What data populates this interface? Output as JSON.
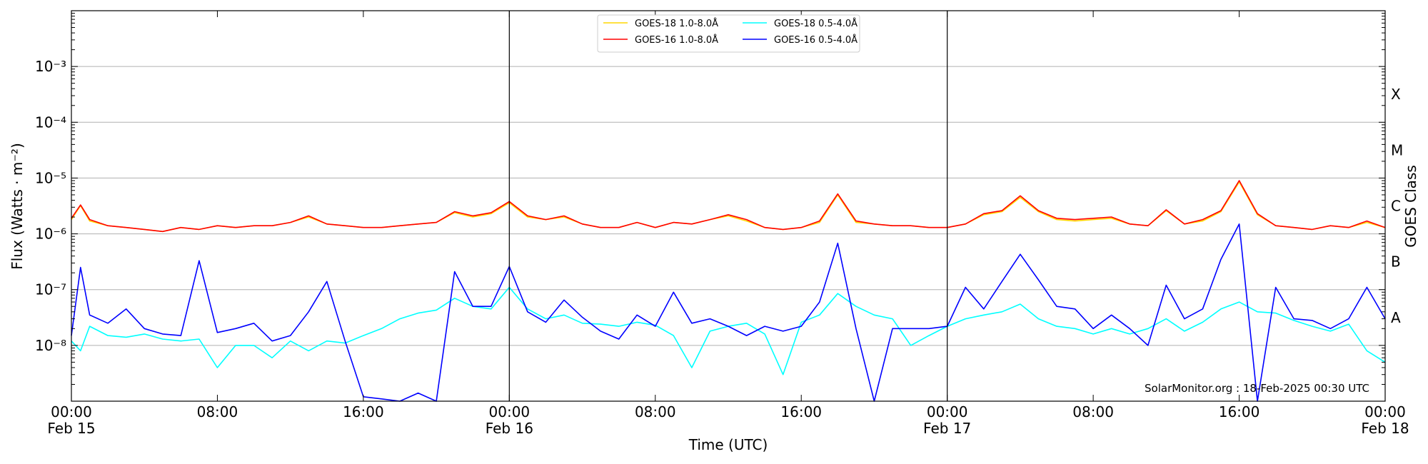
{
  "chart_data": {
    "type": "line",
    "xlabel": "Time (UTC)",
    "ylabel": "Flux (Watts · m⁻²)",
    "right_label": "GOES Class",
    "watermark": "SolarMonitor.org : 18-Feb-2025 00:30 UTC",
    "y_scale": "log",
    "ylim": [
      1e-09,
      0.01
    ],
    "xlim_hours": [
      0,
      72
    ],
    "x_ticks": [
      {
        "time": "00:00",
        "date": "Feb 15"
      },
      {
        "time": "08:00",
        "date": ""
      },
      {
        "time": "16:00",
        "date": ""
      },
      {
        "time": "00:00",
        "date": "Feb 16"
      },
      {
        "time": "08:00",
        "date": ""
      },
      {
        "time": "16:00",
        "date": ""
      },
      {
        "time": "00:00",
        "date": "Feb 17"
      },
      {
        "time": "08:00",
        "date": ""
      },
      {
        "time": "16:00",
        "date": ""
      },
      {
        "time": "00:00",
        "date": "Feb 18"
      }
    ],
    "y_ticks": [
      "10⁻⁸",
      "10⁻⁷",
      "10⁻⁶",
      "10⁻⁵",
      "10⁻⁴",
      "10⁻³"
    ],
    "goes_classes": [
      "A",
      "B",
      "C",
      "M",
      "X"
    ],
    "day_boundaries": [
      "Feb 16 00:00",
      "Feb 17 00:00"
    ],
    "grid": "horizontal",
    "legend_position": "top-center",
    "series": [
      {
        "name": "GOES-18 1.0-8.0Å",
        "color": "#ffd700",
        "x": [
          0,
          0.5,
          1,
          2,
          3,
          4,
          5,
          6,
          7,
          8,
          9,
          10,
          11,
          12,
          13,
          14,
          15,
          16,
          17,
          18,
          19,
          20,
          21,
          22,
          23,
          24,
          25,
          26,
          27,
          28,
          29,
          30,
          31,
          32,
          33,
          34,
          35,
          36,
          37,
          38,
          39,
          40,
          41,
          42,
          43,
          44,
          45,
          46,
          47,
          48,
          49,
          50,
          51,
          52,
          53,
          54,
          55,
          56,
          57,
          58,
          59,
          60,
          61,
          62,
          63,
          64,
          65,
          66,
          67,
          68,
          69,
          70,
          71,
          72
        ],
        "y": [
          1.8e-06,
          3.2e-06,
          1.7e-06,
          1.4e-06,
          1.3e-06,
          1.2e-06,
          1.1e-06,
          1.3e-06,
          1.2e-06,
          1.4e-06,
          1.3e-06,
          1.4e-06,
          1.4e-06,
          1.6e-06,
          2e-06,
          1.5e-06,
          1.4e-06,
          1.3e-06,
          1.3e-06,
          1.4e-06,
          1.5e-06,
          1.6e-06,
          2.4e-06,
          2e-06,
          2.3e-06,
          3.6e-06,
          2e-06,
          1.8e-06,
          2e-06,
          1.5e-06,
          1.3e-06,
          1.3e-06,
          1.6e-06,
          1.3e-06,
          1.6e-06,
          1.5e-06,
          1.8e-06,
          2.1e-06,
          1.7e-06,
          1.3e-06,
          1.2e-06,
          1.3e-06,
          1.6e-06,
          5e-06,
          1.6e-06,
          1.5e-06,
          1.4e-06,
          1.4e-06,
          1.3e-06,
          1.3e-06,
          1.5e-06,
          2.2e-06,
          2.5e-06,
          4.5e-06,
          2.5e-06,
          1.8e-06,
          1.7e-06,
          1.8e-06,
          1.9e-06,
          1.5e-06,
          1.4e-06,
          2.6e-06,
          1.5e-06,
          1.7e-06,
          2.5e-06,
          8.5e-06,
          2.2e-06,
          1.4e-06,
          1.3e-06,
          1.2e-06,
          1.4e-06,
          1.3e-06,
          1.6e-06,
          1.3e-06
        ]
      },
      {
        "name": "GOES-16 1.0-8.0Å",
        "color": "#ff0000",
        "x": [
          0,
          0.5,
          1,
          2,
          3,
          4,
          5,
          6,
          7,
          8,
          9,
          10,
          11,
          12,
          13,
          14,
          15,
          16,
          17,
          18,
          19,
          20,
          21,
          22,
          23,
          24,
          25,
          26,
          27,
          28,
          29,
          30,
          31,
          32,
          33,
          34,
          35,
          36,
          37,
          38,
          39,
          40,
          41,
          42,
          43,
          44,
          45,
          46,
          47,
          48,
          49,
          50,
          51,
          52,
          53,
          54,
          55,
          56,
          57,
          58,
          59,
          60,
          61,
          62,
          63,
          64,
          65,
          66,
          67,
          68,
          69,
          70,
          71,
          72
        ],
        "y": [
          1.9e-06,
          3.3e-06,
          1.8e-06,
          1.4e-06,
          1.3e-06,
          1.2e-06,
          1.1e-06,
          1.3e-06,
          1.2e-06,
          1.4e-06,
          1.3e-06,
          1.4e-06,
          1.4e-06,
          1.6e-06,
          2.1e-06,
          1.5e-06,
          1.4e-06,
          1.3e-06,
          1.3e-06,
          1.4e-06,
          1.5e-06,
          1.6e-06,
          2.5e-06,
          2.1e-06,
          2.4e-06,
          3.8e-06,
          2.1e-06,
          1.8e-06,
          2.1e-06,
          1.5e-06,
          1.3e-06,
          1.3e-06,
          1.6e-06,
          1.3e-06,
          1.6e-06,
          1.5e-06,
          1.8e-06,
          2.2e-06,
          1.8e-06,
          1.3e-06,
          1.2e-06,
          1.3e-06,
          1.7e-06,
          5.2e-06,
          1.7e-06,
          1.5e-06,
          1.4e-06,
          1.4e-06,
          1.3e-06,
          1.3e-06,
          1.5e-06,
          2.3e-06,
          2.6e-06,
          4.8e-06,
          2.6e-06,
          1.9e-06,
          1.8e-06,
          1.9e-06,
          2e-06,
          1.5e-06,
          1.4e-06,
          2.7e-06,
          1.5e-06,
          1.8e-06,
          2.6e-06,
          9e-06,
          2.3e-06,
          1.4e-06,
          1.3e-06,
          1.2e-06,
          1.4e-06,
          1.3e-06,
          1.7e-06,
          1.3e-06
        ]
      },
      {
        "name": "GOES-18 0.5-4.0Å",
        "color": "#00ffff",
        "x": [
          0,
          0.5,
          1,
          2,
          3,
          4,
          5,
          6,
          7,
          8,
          9,
          10,
          11,
          12,
          13,
          14,
          15,
          16,
          17,
          18,
          19,
          20,
          21,
          22,
          23,
          24,
          25,
          26,
          27,
          28,
          29,
          30,
          31,
          32,
          33,
          34,
          35,
          36,
          37,
          38,
          39,
          40,
          41,
          42,
          43,
          44,
          45,
          46,
          47,
          48,
          49,
          50,
          51,
          52,
          53,
          54,
          55,
          56,
          57,
          58,
          59,
          60,
          61,
          62,
          63,
          64,
          65,
          66,
          67,
          68,
          69,
          70,
          71,
          72
        ],
        "y": [
          1.2e-08,
          8e-09,
          2.2e-08,
          1.5e-08,
          1.4e-08,
          1.6e-08,
          1.3e-08,
          1.2e-08,
          1.3e-08,
          4e-09,
          1e-08,
          1e-08,
          6e-09,
          1.2e-08,
          8e-09,
          1.2e-08,
          1.1e-08,
          1.5e-08,
          2e-08,
          3e-08,
          3.8e-08,
          4.3e-08,
          7e-08,
          5e-08,
          4.5e-08,
          1.1e-07,
          4.5e-08,
          3e-08,
          3.5e-08,
          2.5e-08,
          2.4e-08,
          2.2e-08,
          2.6e-08,
          2.3e-08,
          1.5e-08,
          4e-09,
          1.8e-08,
          2.2e-08,
          2.5e-08,
          1.6e-08,
          3e-09,
          2.6e-08,
          3.5e-08,
          8.5e-08,
          5e-08,
          3.5e-08,
          3e-08,
          1e-08,
          1.5e-08,
          2.2e-08,
          3e-08,
          3.5e-08,
          4e-08,
          5.5e-08,
          3e-08,
          2.2e-08,
          2e-08,
          1.6e-08,
          2e-08,
          1.6e-08,
          2e-08,
          3e-08,
          1.8e-08,
          2.6e-08,
          4.5e-08,
          6e-08,
          4e-08,
          3.8e-08,
          2.8e-08,
          2.2e-08,
          1.8e-08,
          2.4e-08,
          8e-09,
          5e-09
        ]
      },
      {
        "name": "GOES-16 0.5-4.0Å",
        "color": "#0000ff",
        "x": [
          0,
          0.5,
          1,
          2,
          3,
          4,
          5,
          6,
          7,
          8,
          9,
          10,
          11,
          12,
          13,
          14,
          15,
          16,
          17,
          18,
          19,
          20,
          21,
          22,
          23,
          24,
          25,
          26,
          27,
          28,
          29,
          30,
          31,
          32,
          33,
          34,
          35,
          36,
          37,
          38,
          39,
          40,
          41,
          42,
          43,
          44,
          45,
          46,
          47,
          48,
          49,
          50,
          51,
          52,
          53,
          54,
          55,
          56,
          57,
          58,
          59,
          60,
          61,
          62,
          63,
          64,
          65,
          66,
          67,
          68,
          69,
          70,
          71,
          72
        ],
        "y": [
          1.5e-08,
          2.5e-07,
          3.5e-08,
          2.5e-08,
          4.5e-08,
          2e-08,
          1.6e-08,
          1.5e-08,
          3.3e-07,
          1.7e-08,
          2e-08,
          2.5e-08,
          1.2e-08,
          1.5e-08,
          4e-08,
          1.4e-07,
          1.2e-08,
          1.2e-09,
          1.1e-09,
          1e-09,
          1.4e-09,
          1e-09,
          2.1e-07,
          5e-08,
          5e-08,
          2.6e-07,
          4e-08,
          2.6e-08,
          6.5e-08,
          3.2e-08,
          1.8e-08,
          1.3e-08,
          3.5e-08,
          2.2e-08,
          9e-08,
          2.5e-08,
          3e-08,
          2.2e-08,
          1.5e-08,
          2.2e-08,
          1.8e-08,
          2.2e-08,
          6e-08,
          6.8e-07,
          2e-08,
          1e-09,
          2e-08,
          2e-08,
          2e-08,
          2.2e-08,
          1.1e-07,
          4.5e-08,
          1.4e-07,
          4.3e-07,
          1.5e-07,
          5e-08,
          4.5e-08,
          2e-08,
          3.5e-08,
          2e-08,
          1e-08,
          1.2e-07,
          3e-08,
          4.5e-08,
          3.5e-07,
          1.5e-06,
          1e-09,
          1.1e-07,
          3e-08,
          2.8e-08,
          2e-08,
          3e-08,
          1.1e-07,
          3e-08
        ]
      }
    ]
  }
}
